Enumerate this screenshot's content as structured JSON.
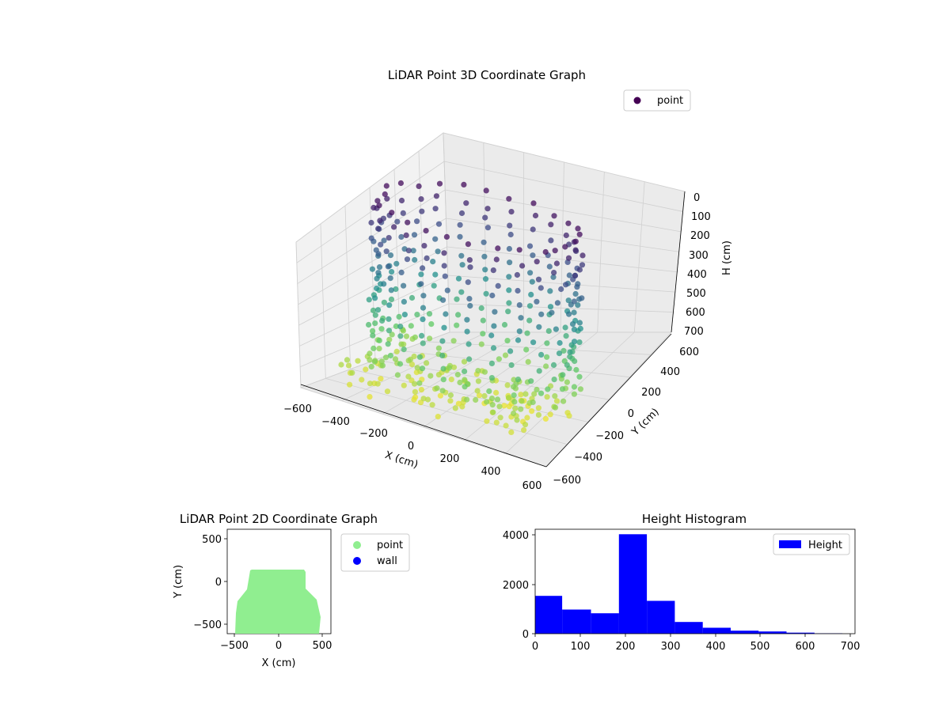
{
  "colors": {
    "scatter_cmap": [
      "#440154",
      "#3b528b",
      "#21918c",
      "#5ec962",
      "#fde725"
    ],
    "point_2d": "#90ee90",
    "wall_2d": "#0000ff",
    "hist_bar": "#0000ff",
    "pane": "#f2f2f2",
    "grid": "#d0d0d0"
  },
  "chart_data": [
    {
      "type": "scatter",
      "projection": "3d",
      "title": "LiDAR Point 3D Coordinate Graph",
      "xlabel": "X (cm)",
      "ylabel": "Y (cm)",
      "zlabel": "H (cm)",
      "xlim": [
        -600,
        600
      ],
      "ylim": [
        -600,
        600
      ],
      "zlim": [
        700,
        0
      ],
      "z_inverted": true,
      "x_ticks": [
        "−600",
        "−400",
        "−200",
        "0",
        "200",
        "400",
        "600"
      ],
      "y_ticks": [
        "−600",
        "−400",
        "−200",
        "0",
        "200",
        "400",
        "600"
      ],
      "z_ticks": [
        "0",
        "100",
        "200",
        "300",
        "400",
        "500",
        "600",
        "700"
      ],
      "legend": {
        "position": "upper-right",
        "entries": [
          {
            "label": "point",
            "color": "#440154"
          }
        ]
      },
      "grid": true,
      "color_mapping": "height (cmap viridis-like)",
      "series": [
        {
          "name": "point",
          "shape": "room shell: walls and floor sampled in rings",
          "x_range": [
            -500,
            500
          ],
          "y_range": [
            -550,
            150
          ],
          "h_range": [
            0,
            680
          ]
        }
      ]
    },
    {
      "type": "scatter",
      "title": "LiDAR Point 2D Coordinate Graph",
      "xlabel": "X (cm)",
      "ylabel": "Y (cm)",
      "xlim": [
        -600,
        600
      ],
      "ylim": [
        -600,
        600
      ],
      "x_ticks": [
        "−500",
        "0",
        "500"
      ],
      "y_ticks": [
        "500",
        "0",
        "−500"
      ],
      "legend": {
        "position": "outside-right",
        "entries": [
          {
            "label": "point",
            "color": "#90ee90"
          },
          {
            "label": "wall",
            "color": "#0000ff"
          }
        ]
      },
      "grid": false,
      "series": [
        {
          "name": "point",
          "footprint": {
            "x_top": [
              -340,
              300
            ],
            "x_bottom": [
              -510,
              480
            ],
            "y": [
              -570,
              140
            ]
          }
        },
        {
          "name": "wall",
          "points": []
        }
      ]
    },
    {
      "type": "bar",
      "subtype": "histogram",
      "title": "Height Histogram",
      "xlabel": "",
      "ylabel": "",
      "xlim": [
        0,
        710
      ],
      "ylim": [
        0,
        4200
      ],
      "x_ticks": [
        "0",
        "100",
        "200",
        "300",
        "400",
        "500",
        "600",
        "700"
      ],
      "y_ticks": [
        "0",
        "2000",
        "4000"
      ],
      "bin_edges": [
        0,
        60,
        124,
        186,
        248,
        310,
        372,
        434,
        496,
        558,
        620,
        682
      ],
      "values": [
        1520,
        970,
        820,
        4000,
        1320,
        470,
        240,
        120,
        90,
        40,
        15
      ],
      "legend": {
        "position": "upper-right",
        "entries": [
          {
            "label": "Height",
            "color": "#0000ff"
          }
        ]
      },
      "grid": false
    }
  ]
}
